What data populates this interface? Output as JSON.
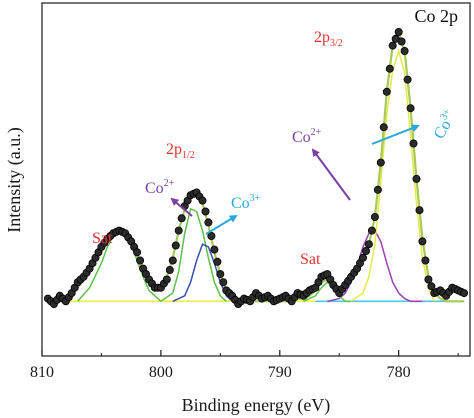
{
  "chart_data": {
    "type": "line",
    "panel_label": "Co 2p",
    "xlabel": "Binding energy (eV)",
    "ylabel": "Intensity (a.u.)",
    "xlim": [
      810,
      774
    ],
    "x_reversed": true,
    "xticks": [
      810,
      800,
      790,
      780
    ],
    "y_ticks_shown": false,
    "ylim": [
      0,
      1.08
    ],
    "colors": {
      "raw_points": "#1a1a1a",
      "envelope": "#a7c957",
      "background": "#eeee44",
      "co2_component": "#9b3fb5",
      "co3_component": "#e8e84a",
      "sat_component": "#5fbf4a",
      "p12_co3_component": "#3a4fb0",
      "baseline_right": "#4fc3e8",
      "annotation_red": "#e3342f",
      "annotation_purple": "#7b3fa6",
      "annotation_cyan": "#29a8e0"
    },
    "series": [
      {
        "role": "raw data",
        "style": "markers",
        "x": [
          809.5,
          809,
          808.5,
          808,
          807.5,
          807,
          806.5,
          806,
          805.5,
          805,
          804.5,
          804,
          803.5,
          803,
          802.5,
          802,
          801.5,
          801,
          800.5,
          800,
          799.5,
          799,
          798.5,
          798,
          797.5,
          797,
          796.5,
          796,
          795.5,
          795,
          794.5,
          794,
          793.5,
          793,
          792.5,
          792,
          791.5,
          791,
          790.5,
          790,
          789.5,
          789,
          788.5,
          788,
          787.5,
          787,
          786.5,
          786,
          785.5,
          785,
          784.5,
          784,
          783.5,
          783,
          782.5,
          782,
          781.5,
          781,
          780.5,
          780,
          779.5,
          779,
          778.5,
          778,
          777.5,
          777,
          776.5,
          776,
          775.5,
          775,
          774.5
        ],
        "y": [
          0.02,
          0.0,
          0.03,
          0.01,
          0.04,
          0.08,
          0.1,
          0.13,
          0.17,
          0.21,
          0.24,
          0.26,
          0.27,
          0.26,
          0.23,
          0.19,
          0.13,
          0.09,
          0.06,
          0.06,
          0.09,
          0.16,
          0.27,
          0.36,
          0.4,
          0.41,
          0.38,
          0.3,
          0.2,
          0.11,
          0.05,
          0.03,
          0.0,
          0.02,
          0.01,
          0.04,
          0.02,
          0.03,
          0.01,
          0.02,
          0.03,
          0.01,
          0.04,
          0.03,
          0.05,
          0.06,
          0.1,
          0.11,
          0.07,
          0.04,
          0.07,
          0.1,
          0.13,
          0.17,
          0.22,
          0.32,
          0.52,
          0.78,
          0.95,
          1.0,
          0.93,
          0.72,
          0.46,
          0.23,
          0.09,
          0.04,
          0.05,
          0.03,
          0.06,
          0.05,
          0.04
        ]
      },
      {
        "role": "fit envelope",
        "style": "line",
        "x": [
          809.5,
          809,
          808.5,
          808,
          807.5,
          807,
          806.5,
          806,
          805.5,
          805,
          804.5,
          804,
          803.5,
          803,
          802.5,
          802,
          801.5,
          801,
          800.5,
          800,
          799.5,
          799,
          798.5,
          798,
          797.5,
          797,
          796.5,
          796,
          795.5,
          795,
          794.5,
          794,
          793.5,
          793,
          792.5,
          792,
          791.5,
          791,
          790.5,
          790,
          789.5,
          789,
          788.5,
          788,
          787.5,
          787,
          786.5,
          786,
          785.5,
          785,
          784.5,
          784,
          783.5,
          783,
          782.5,
          782,
          781.5,
          781,
          780.5,
          780,
          779.5,
          779,
          778.5,
          778,
          777.5,
          777,
          776.5,
          776,
          775.5,
          775,
          774.5
        ],
        "y": [
          0.01,
          0.01,
          0.01,
          0.02,
          0.03,
          0.06,
          0.09,
          0.13,
          0.17,
          0.21,
          0.24,
          0.26,
          0.27,
          0.26,
          0.23,
          0.18,
          0.13,
          0.09,
          0.07,
          0.07,
          0.1,
          0.17,
          0.27,
          0.35,
          0.4,
          0.41,
          0.37,
          0.29,
          0.19,
          0.11,
          0.05,
          0.02,
          0.01,
          0.01,
          0.01,
          0.01,
          0.01,
          0.01,
          0.01,
          0.01,
          0.01,
          0.01,
          0.02,
          0.02,
          0.03,
          0.05,
          0.08,
          0.09,
          0.07,
          0.05,
          0.06,
          0.09,
          0.13,
          0.17,
          0.22,
          0.32,
          0.52,
          0.78,
          0.95,
          1.0,
          0.93,
          0.72,
          0.46,
          0.24,
          0.1,
          0.04,
          0.02,
          0.01,
          0.01,
          0.01,
          0.01
        ]
      },
      {
        "role": "background",
        "style": "line",
        "x": [
          809.5,
          774.5
        ],
        "y": [
          0.01,
          0.01
        ]
      },
      {
        "role": "Co2+ 2p3/2 component",
        "style": "line",
        "x": [
          786,
          785,
          784.5,
          784,
          783.5,
          783,
          782.5,
          782,
          781.5,
          781,
          780.5,
          780,
          779.5,
          779,
          778
        ],
        "y": [
          0.01,
          0.02,
          0.04,
          0.08,
          0.14,
          0.21,
          0.26,
          0.27,
          0.23,
          0.15,
          0.08,
          0.04,
          0.02,
          0.01,
          0.01
        ]
      },
      {
        "role": "Co3+ 2p3/2 component",
        "style": "line",
        "x": [
          784,
          783,
          782.5,
          782,
          781.5,
          781,
          780.5,
          780,
          779.5,
          779,
          778.5,
          778,
          777.5,
          777
        ],
        "y": [
          0.01,
          0.04,
          0.1,
          0.22,
          0.45,
          0.7,
          0.86,
          0.93,
          0.85,
          0.62,
          0.37,
          0.17,
          0.06,
          0.01
        ]
      },
      {
        "role": "2p1/2 component (green)",
        "style": "line",
        "x": [
          800,
          799,
          798.5,
          798,
          797.5,
          797,
          796.5,
          796,
          795.5,
          795,
          794.5
        ],
        "y": [
          0.01,
          0.04,
          0.12,
          0.26,
          0.35,
          0.34,
          0.27,
          0.17,
          0.08,
          0.03,
          0.01
        ]
      },
      {
        "role": "2p1/2 component (blue)",
        "style": "line",
        "x": [
          799,
          798,
          797.5,
          797,
          796.5,
          796,
          795.5,
          795,
          794.5,
          794,
          793.5
        ],
        "y": [
          0.01,
          0.03,
          0.08,
          0.16,
          0.22,
          0.21,
          0.15,
          0.08,
          0.03,
          0.01,
          0.01
        ]
      },
      {
        "role": "Sat component at ~803",
        "style": "line",
        "x": [
          807,
          806,
          805,
          804.5,
          804,
          803.5,
          803,
          802.5,
          802,
          801.5,
          801,
          800
        ],
        "y": [
          0.01,
          0.06,
          0.15,
          0.21,
          0.25,
          0.27,
          0.26,
          0.22,
          0.16,
          0.1,
          0.05,
          0.01
        ]
      },
      {
        "role": "Sat component at ~786",
        "style": "line",
        "x": [
          788,
          787,
          786.5,
          786,
          785.5,
          785,
          784.5,
          784
        ],
        "y": [
          0.01,
          0.03,
          0.06,
          0.08,
          0.06,
          0.03,
          0.01,
          0.01
        ]
      }
    ],
    "annotations": {
      "sat_left": "Sat",
      "sat_right": "Sat",
      "p12_main": "2p",
      "p12_sub": "1/2",
      "p32_main": "2p",
      "p32_sub": "3/2",
      "co2_left_main": "Co",
      "co2_left_sup": "2+",
      "co3_left_main": "Co",
      "co3_left_sup": "3+",
      "co2_right_main": "Co",
      "co2_right_sup": "2+",
      "co3_right_main": "Co",
      "co3_right_sup": "3+"
    }
  }
}
